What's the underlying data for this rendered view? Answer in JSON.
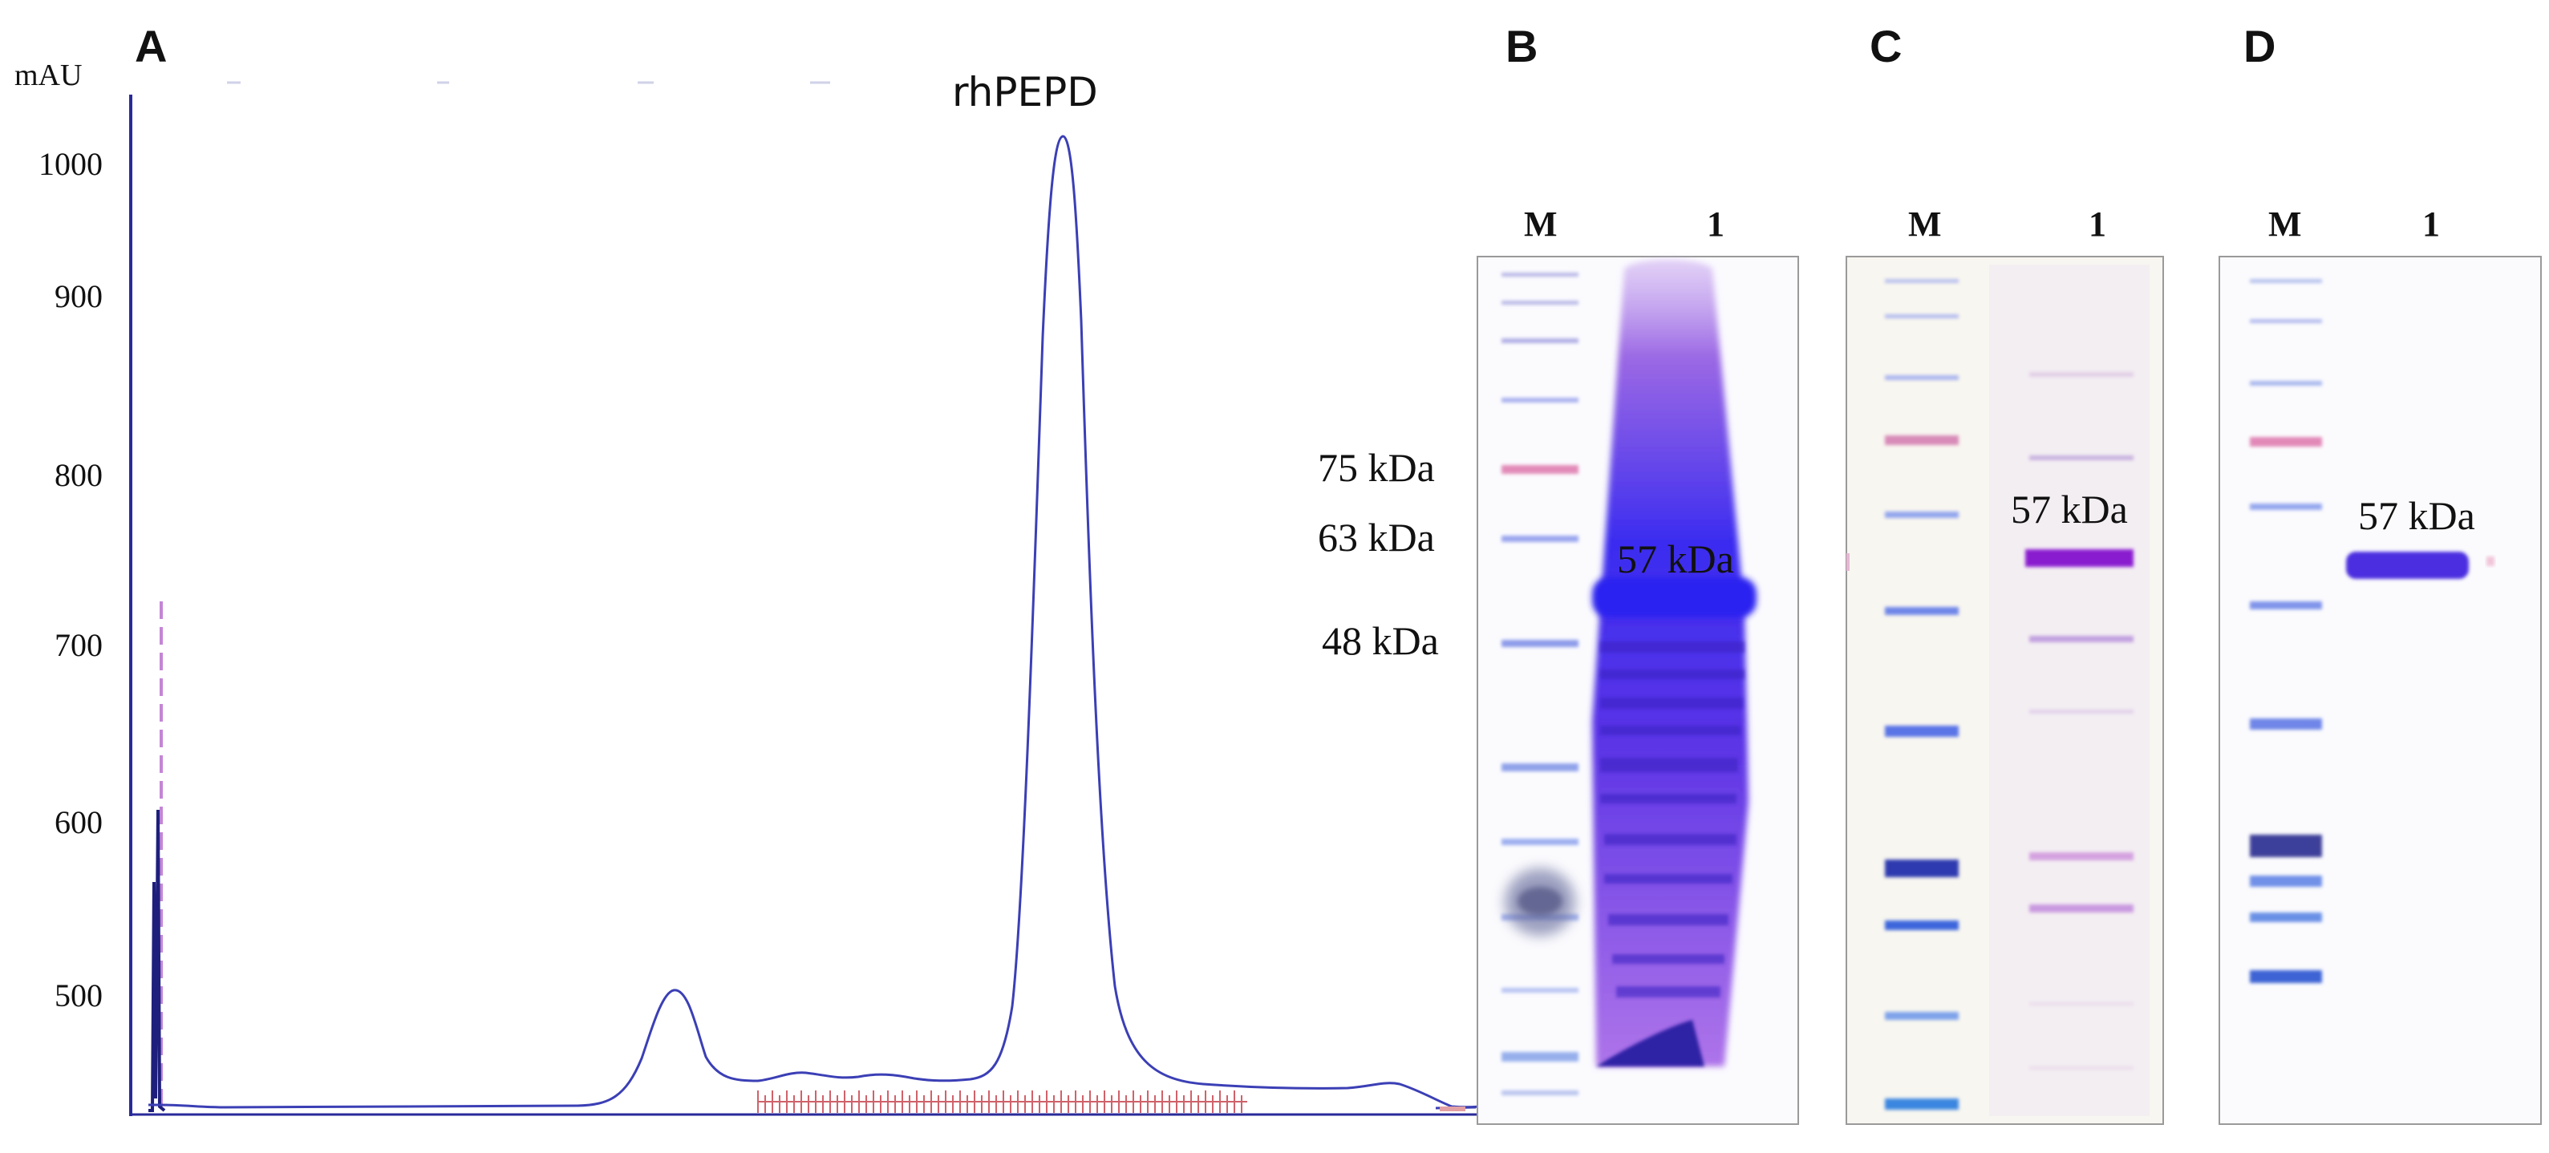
{
  "panels": {
    "A": {
      "letter": "A",
      "y_unit": "mAU",
      "y_ticks": [
        "1000",
        "900",
        "800",
        "700",
        "600",
        "500"
      ],
      "peak_label": "rhPEPD",
      "colors": {
        "trace": "#3b3fb5",
        "axis": "#2a2a9a",
        "fractions": "#d0626a",
        "injection": "#c486d6"
      }
    },
    "B": {
      "letter": "B",
      "lanes": [
        "M",
        "1"
      ],
      "marker_labels": [
        "75 kDa",
        "63 kDa",
        "48 kDa"
      ],
      "band_label": "57 kDa"
    },
    "C": {
      "letter": "C",
      "lanes": [
        "M",
        "1"
      ],
      "band_label": "57 kDa"
    },
    "D": {
      "letter": "D",
      "lanes": [
        "M",
        "1"
      ],
      "band_label": "57 kDa"
    }
  }
}
